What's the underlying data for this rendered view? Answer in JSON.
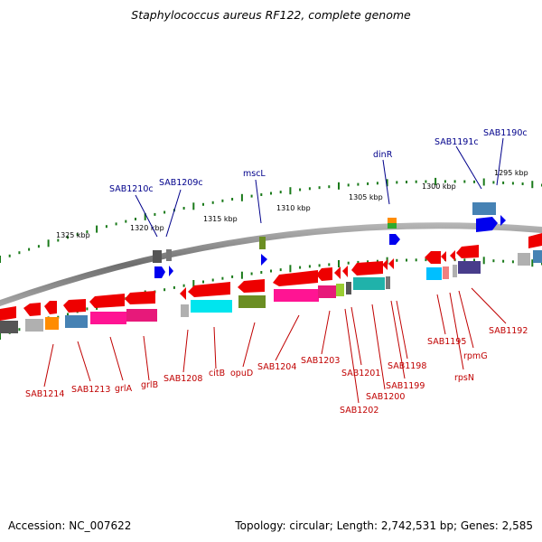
{
  "title": "Staphylococcus aureus RF122, complete genome",
  "footer": {
    "accession": "Accession: NC_007622",
    "topology": "Topology: circular; Length: 2,742,531 bp; Genes: 2,585"
  },
  "scale_labels": [
    "1325 kbp",
    "1320 kbp",
    "1315 kbp",
    "1310 kbp",
    "1305 kbp",
    "1300 kbp",
    "1295 kbp"
  ],
  "top_labels": [
    "SAB1210c",
    "SAB1209c",
    "mscL",
    "dinR",
    "SAB1191c",
    "SAB1190c"
  ],
  "bottom_labels": [
    "SAB1214",
    "SAB1213",
    "grlA",
    "grlB",
    "SAB1208",
    "citB",
    "opuD",
    "SAB1204",
    "SAB1203",
    "SAB1202",
    "SAB1201",
    "SAB1200",
    "SAB1199",
    "SAB1198",
    "SAB1195",
    "rpsN",
    "rpmG",
    "SAB1192"
  ],
  "colors": {
    "top_label": "#00008b",
    "bottom_label": "#c00000",
    "gene": "#ee0000",
    "backbone": "#808080",
    "ticks": "#1a7a1a"
  }
}
